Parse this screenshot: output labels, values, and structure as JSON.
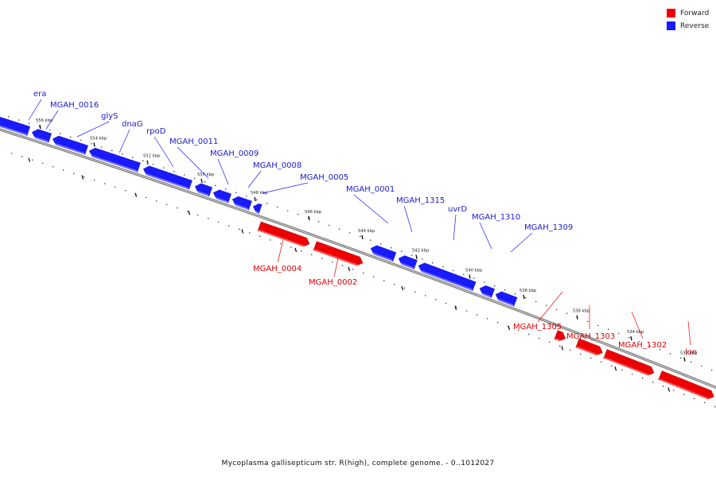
{
  "caption": "Mycoplasma gallisepticum str. R(high), complete genome. - 0..1012027",
  "colors": {
    "forward": "#ee0000",
    "reverse": "#1a1aff",
    "reverse_text": "#1a1acc",
    "forward_text": "#dd0000"
  },
  "legend": [
    {
      "label": "Forward",
      "color": "#ee0000"
    },
    {
      "label": "Reverse",
      "color": "#1a1aff"
    }
  ],
  "scale_ticks": [
    "556 kbp",
    "554 kbp",
    "552 kbp",
    "550 kbp",
    "548 kbp",
    "546 kbp",
    "544 kbp",
    "542 kbp",
    "540 kbp",
    "538 kbp",
    "536 kbp",
    "534 kbp",
    "532 kbp"
  ],
  "genes_reverse": [
    "era",
    "MGAH_0016",
    "glyS",
    "dnaG",
    "rpoD",
    "MGAH_0011",
    "MGAH_0009",
    "MGAH_0008",
    "MGAH_0005",
    "MGAH_0001",
    "MGAH_1315",
    "uvrD",
    "MGAH_1310",
    "MGAH_1309"
  ],
  "genes_forward": [
    "MGAH_0004",
    "MGAH_0002",
    "MGAH_1305",
    "MGAH_1303",
    "MGAH_1302",
    "lon"
  ]
}
